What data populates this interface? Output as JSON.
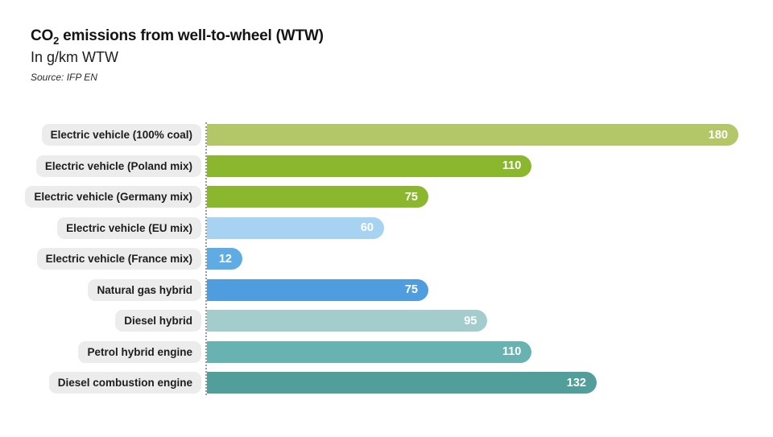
{
  "header": {
    "title_prefix": "CO",
    "title_sub": "2",
    "title_rest": " emissions from well-to-wheel (WTW)",
    "subtitle": "In g/km WTW",
    "source": "Source: IFP EN"
  },
  "chart_data": {
    "type": "bar",
    "orientation": "horizontal",
    "title": "CO2 emissions from well-to-wheel (WTW)",
    "subtitle": "In g/km WTW",
    "source": "Source: IFP EN",
    "unit": "g/km",
    "xlim": [
      0,
      180
    ],
    "grid": false,
    "value_labels": "inside-end, white",
    "categories": [
      "Electric vehicle (100% coal)",
      "Electric vehicle (Poland mix)",
      "Electric vehicle (Germany mix)",
      "Electric vehicle (EU mix)",
      "Electric vehicle (France mix)",
      "Natural gas hybrid",
      "Diesel hybrid",
      "Petrol hybrid engine",
      "Diesel combustion engine"
    ],
    "values": [
      180,
      110,
      75,
      60,
      12,
      75,
      95,
      110,
      132
    ],
    "bar_colors": [
      "#b4c768",
      "#8bb72f",
      "#8bb72f",
      "#a8d2f2",
      "#5fabe4",
      "#4f9dde",
      "#a2cdcc",
      "#68b2b1",
      "#529e9a"
    ],
    "label_pill_bg": "#ececec",
    "value_label_color": "#ffffff",
    "baseline_style": "dotted vertical line at x=0"
  }
}
